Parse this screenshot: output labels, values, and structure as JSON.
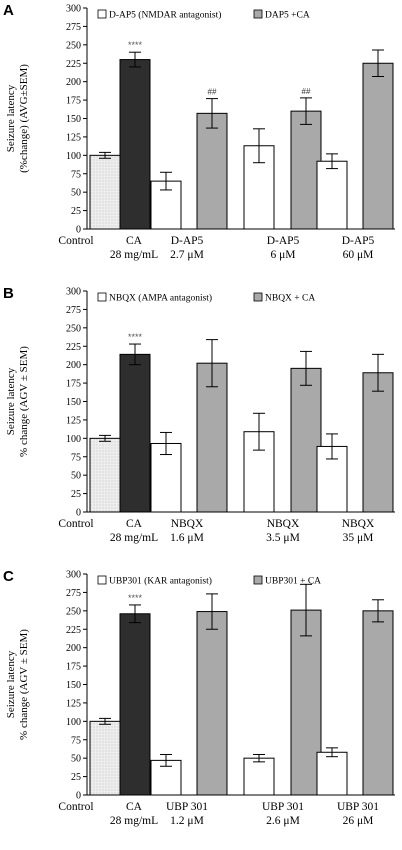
{
  "figure": {
    "fill_colors": {
      "control": "#e8e8e8",
      "ca": "#2e2e2e",
      "antagonist": "#ffffff",
      "antagonist_plus_ca": "#a9a9a9",
      "stroke": "#000000",
      "star": "#555555"
    }
  },
  "chart_data": [
    {
      "type": "bar",
      "panel": "A",
      "ylabel_lines": [
        "Seizure latency",
        "(%change) (AVG±SEM)"
      ],
      "ylim": [
        0,
        300
      ],
      "yticks": [
        0,
        25,
        50,
        75,
        100,
        125,
        150,
        175,
        200,
        225,
        250,
        275,
        300
      ],
      "legend": [
        {
          "label": "D-AP5 (NMDAR antagonist)",
          "kind": "antagonist"
        },
        {
          "label": "DAP5 +CA",
          "kind": "antagonist_plus_ca"
        }
      ],
      "groups": [
        {
          "label_lines": [
            "Control"
          ],
          "bars": [
            {
              "kind": "control",
              "value": 100,
              "err": 4
            }
          ]
        },
        {
          "label_lines": [
            "CA",
            "28 mg/mL"
          ],
          "bars": [
            {
              "kind": "ca",
              "value": 230,
              "err": 10,
              "annotation": "****"
            }
          ]
        },
        {
          "label_lines": [
            "D-AP5",
            "2.7 μM"
          ],
          "bars": [
            {
              "kind": "antagonist",
              "value": 65,
              "err": 12
            },
            {
              "kind": "antagonist_plus_ca",
              "value": 157,
              "err": 20,
              "annotation": "##"
            }
          ]
        },
        {
          "label_lines": [
            "D-AP5",
            "6 μM"
          ],
          "bars": [
            {
              "kind": "antagonist",
              "value": 113,
              "err": 23
            },
            {
              "kind": "antagonist_plus_ca",
              "value": 160,
              "err": 18,
              "annotation": "##"
            }
          ]
        },
        {
          "label_lines": [
            "D-AP5",
            "60 μM"
          ],
          "bars": [
            {
              "kind": "antagonist",
              "value": 92,
              "err": 10
            },
            {
              "kind": "antagonist_plus_ca",
              "value": 225,
              "err": 18
            }
          ]
        }
      ]
    },
    {
      "type": "bar",
      "panel": "B",
      "ylabel_lines": [
        "Seizure latency",
        "% change (AGV ± SEM)"
      ],
      "ylim": [
        0,
        300
      ],
      "yticks": [
        0,
        25,
        50,
        75,
        100,
        125,
        150,
        175,
        200,
        225,
        250,
        275,
        300
      ],
      "legend": [
        {
          "label": "NBQX (AMPA antagonist)",
          "kind": "antagonist"
        },
        {
          "label": "NBQX + CA",
          "kind": "antagonist_plus_ca"
        }
      ],
      "groups": [
        {
          "label_lines": [
            "Control"
          ],
          "bars": [
            {
              "kind": "control",
              "value": 100,
              "err": 4
            }
          ]
        },
        {
          "label_lines": [
            "CA",
            "28 mg/mL"
          ],
          "bars": [
            {
              "kind": "ca",
              "value": 214,
              "err": 14,
              "annotation": "****"
            }
          ]
        },
        {
          "label_lines": [
            "NBQX",
            "1.6 μM"
          ],
          "bars": [
            {
              "kind": "antagonist",
              "value": 93,
              "err": 15
            },
            {
              "kind": "antagonist_plus_ca",
              "value": 202,
              "err": 32
            }
          ]
        },
        {
          "label_lines": [
            "NBQX",
            "3.5 μM"
          ],
          "bars": [
            {
              "kind": "antagonist",
              "value": 109,
              "err": 25
            },
            {
              "kind": "antagonist_plus_ca",
              "value": 195,
              "err": 23
            }
          ]
        },
        {
          "label_lines": [
            "NBQX",
            "35 μM"
          ],
          "bars": [
            {
              "kind": "antagonist",
              "value": 89,
              "err": 17
            },
            {
              "kind": "antagonist_plus_ca",
              "value": 189,
              "err": 25
            }
          ]
        }
      ]
    },
    {
      "type": "bar",
      "panel": "C",
      "ylabel_lines": [
        "Seizure latency",
        "% change (AGV ± SEM)"
      ],
      "ylim": [
        0,
        300
      ],
      "yticks": [
        0,
        25,
        50,
        75,
        100,
        125,
        150,
        175,
        200,
        225,
        250,
        275,
        300
      ],
      "legend": [
        {
          "label": "UBP301 (KAR antagonist)",
          "kind": "antagonist"
        },
        {
          "label": "UBP301 + CA",
          "kind": "antagonist_plus_ca"
        }
      ],
      "groups": [
        {
          "label_lines": [
            "Control"
          ],
          "bars": [
            {
              "kind": "control",
              "value": 100,
              "err": 4
            }
          ]
        },
        {
          "label_lines": [
            "CA",
            "28 mg/mL"
          ],
          "bars": [
            {
              "kind": "ca",
              "value": 246,
              "err": 12,
              "annotation": "****"
            }
          ]
        },
        {
          "label_lines": [
            "UBP 301",
            "1.2 μM"
          ],
          "bars": [
            {
              "kind": "antagonist",
              "value": 47,
              "err": 8
            },
            {
              "kind": "antagonist_plus_ca",
              "value": 249,
              "err": 24
            }
          ]
        },
        {
          "label_lines": [
            "UBP 301",
            "2.6 μM"
          ],
          "bars": [
            {
              "kind": "antagonist",
              "value": 50,
              "err": 5
            },
            {
              "kind": "antagonist_plus_ca",
              "value": 251,
              "err": 35
            }
          ]
        },
        {
          "label_lines": [
            "UBP 301",
            "26 μM"
          ],
          "bars": [
            {
              "kind": "antagonist",
              "value": 58,
              "err": 6
            },
            {
              "kind": "antagonist_plus_ca",
              "value": 250,
              "err": 15
            }
          ]
        }
      ]
    }
  ]
}
